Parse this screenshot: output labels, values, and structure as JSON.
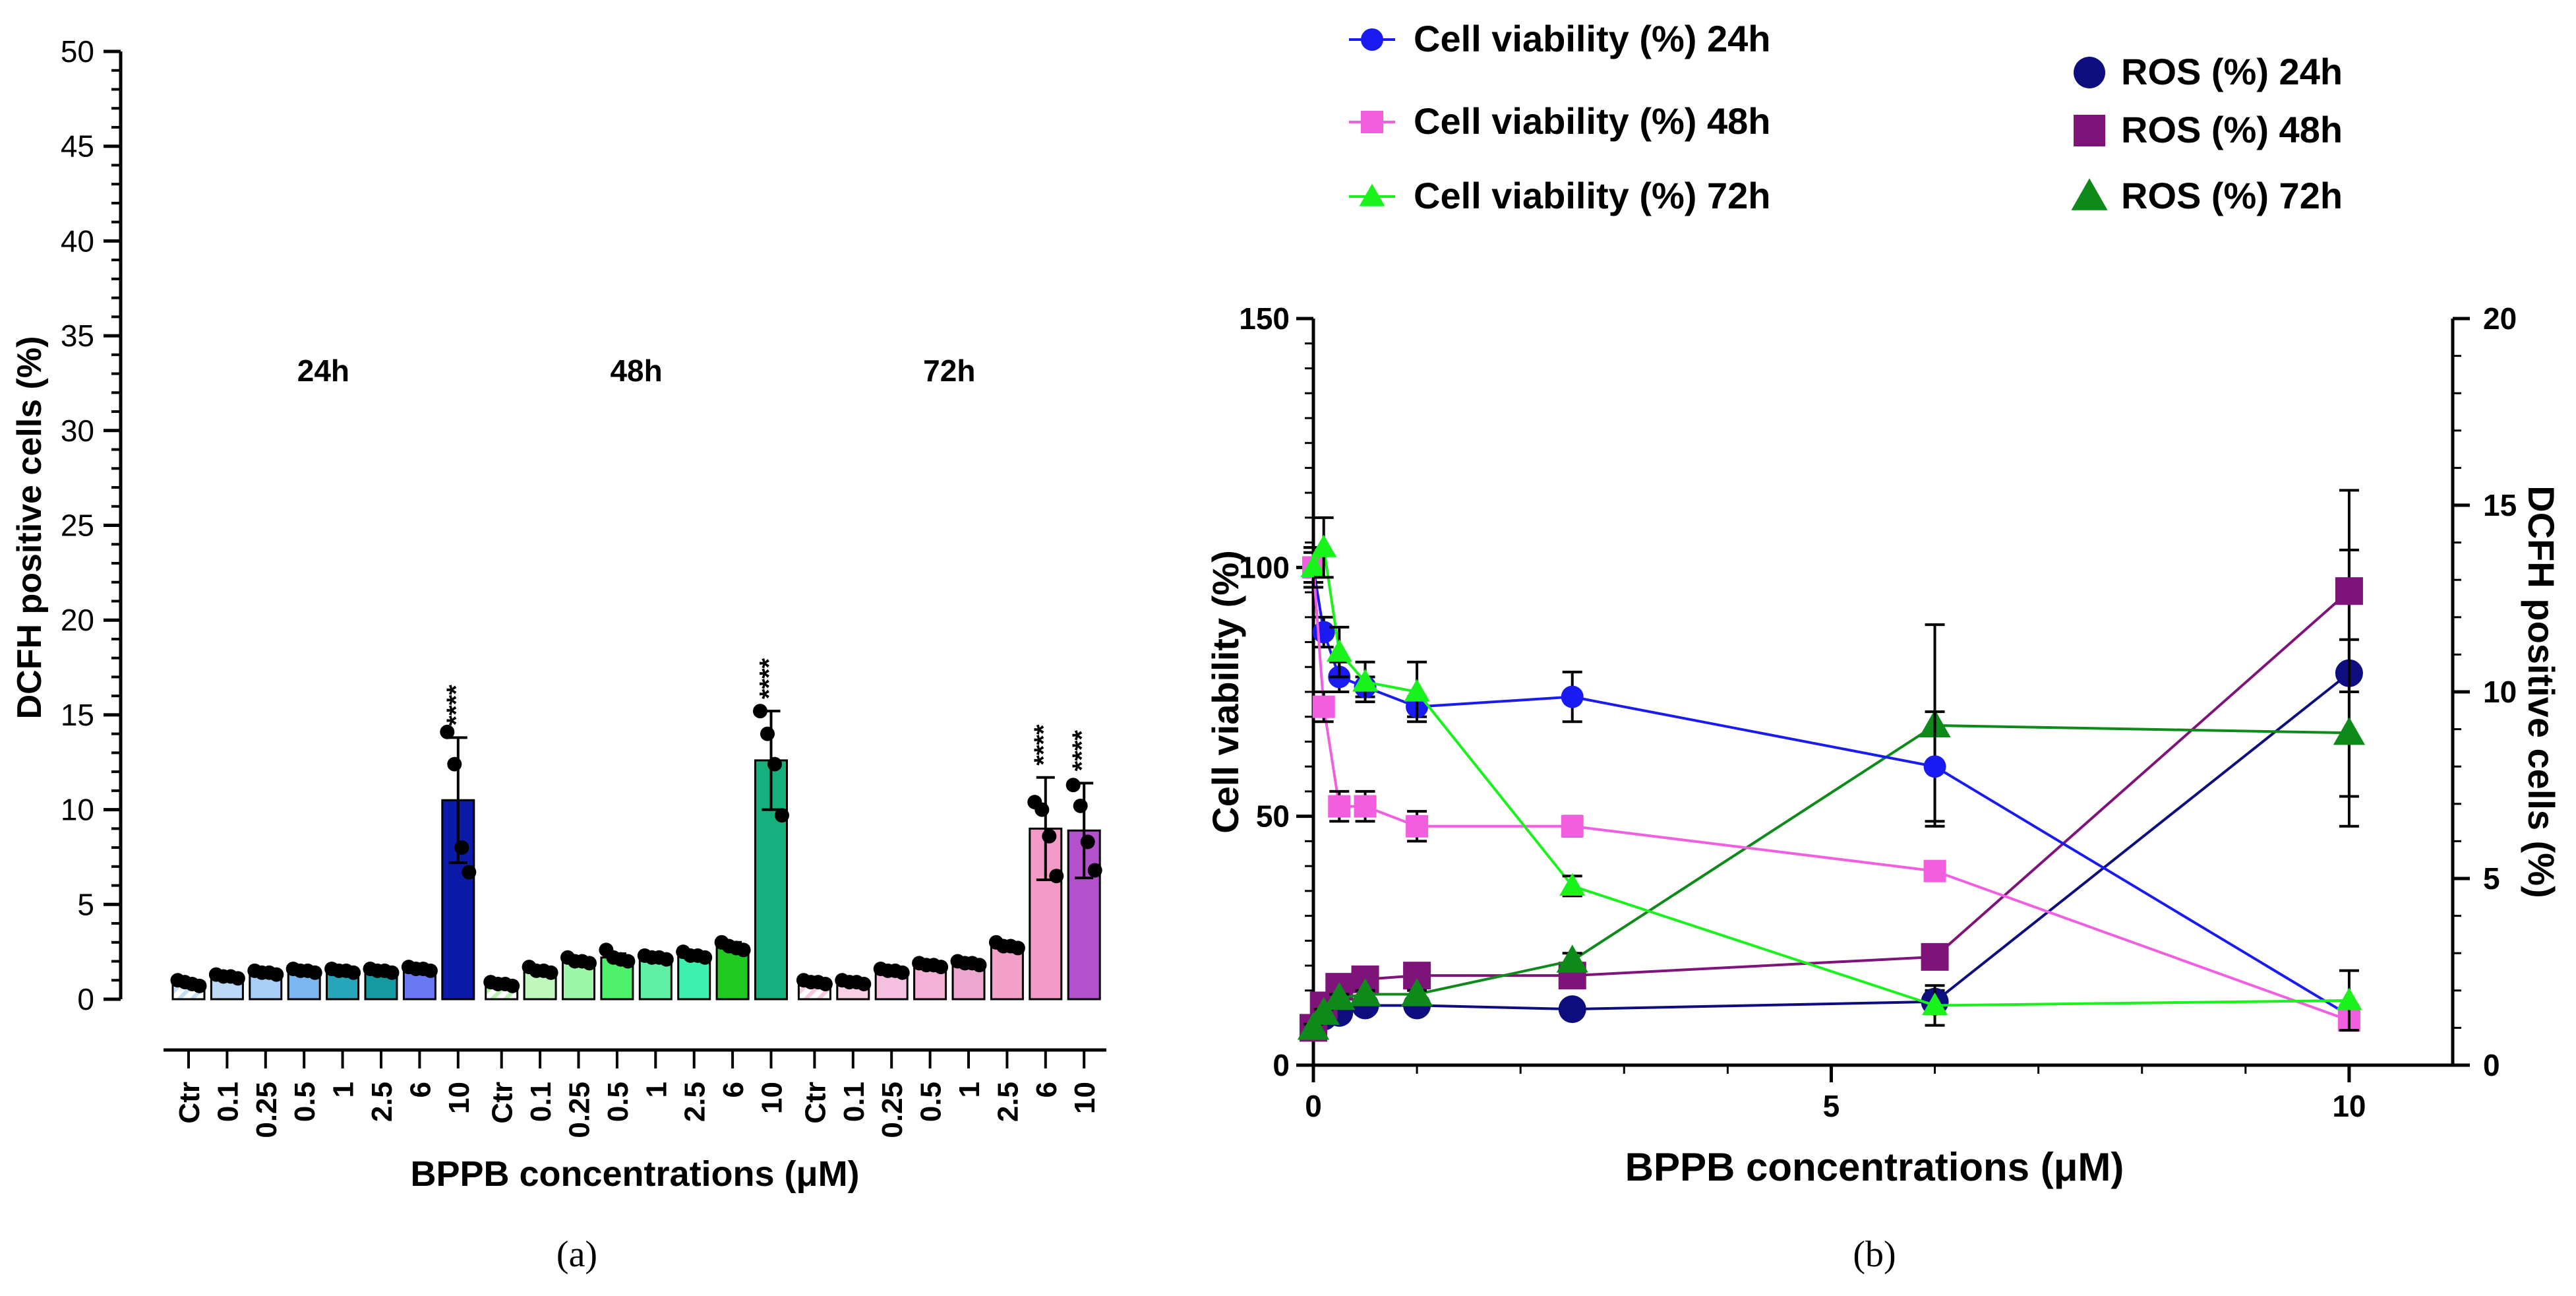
{
  "chart_data": [
    {
      "type": "bar",
      "panel_label": "(a)",
      "ylabel": "DCFH positive cells (%)",
      "xlabel": "BPPB concentrations (μM)",
      "ylim": [
        0,
        50
      ],
      "yticks": [
        0,
        5,
        10,
        15,
        20,
        25,
        30,
        35,
        40,
        45,
        50
      ],
      "groups": [
        {
          "label": "24h",
          "categories": [
            "Ctr",
            "0.1",
            "0.25",
            "0.5",
            "1",
            "2.5",
            "6",
            "10"
          ],
          "values": [
            0.9,
            1.2,
            1.4,
            1.5,
            1.5,
            1.5,
            1.6,
            10.5
          ],
          "errors": [
            0.1,
            0.1,
            0.1,
            0.1,
            0.1,
            0.1,
            0.1,
            3.3
          ],
          "colors": [
            "#c7ddf6",
            "#bcd9f7",
            "#a9cff8",
            "#7cb6f1",
            "#26a6b8",
            "#169aa2",
            "#6a78f2",
            "#0c1aa8"
          ],
          "significance": [
            "",
            "",
            "",
            "",
            "",
            "",
            "",
            "****"
          ],
          "points": [
            [
              1.0,
              0.9,
              0.8,
              0.7
            ],
            [
              1.3,
              1.2,
              1.2,
              1.1
            ],
            [
              1.5,
              1.4,
              1.4,
              1.3
            ],
            [
              1.6,
              1.5,
              1.5,
              1.4
            ],
            [
              1.6,
              1.5,
              1.5,
              1.4
            ],
            [
              1.6,
              1.5,
              1.5,
              1.4
            ],
            [
              1.7,
              1.6,
              1.6,
              1.5
            ],
            [
              14.1,
              12.4,
              8.0,
              6.7
            ]
          ]
        },
        {
          "label": "48h",
          "categories": [
            "Ctr",
            "0.1",
            "0.25",
            "0.5",
            "1",
            "2.5",
            "6",
            "10"
          ],
          "values": [
            0.8,
            1.5,
            2.0,
            2.2,
            2.2,
            2.3,
            2.8,
            12.6
          ],
          "errors": [
            0.1,
            0.1,
            0.1,
            0.2,
            0.1,
            0.1,
            0.2,
            2.6
          ],
          "colors": [
            "#b9f2b0",
            "#bff7bd",
            "#9df7a8",
            "#4ff06a",
            "#5ff0a6",
            "#3cf0b0",
            "#1fc91f",
            "#15b07d"
          ],
          "significance": [
            "",
            "",
            "",
            "",
            "",
            "",
            "",
            "****"
          ],
          "points": [
            [
              0.9,
              0.8,
              0.8,
              0.7
            ],
            [
              1.7,
              1.5,
              1.5,
              1.4
            ],
            [
              2.2,
              2.0,
              2.0,
              1.9
            ],
            [
              2.6,
              2.2,
              2.1,
              2.0
            ],
            [
              2.3,
              2.2,
              2.2,
              2.1
            ],
            [
              2.5,
              2.3,
              2.3,
              2.2
            ],
            [
              3.0,
              2.8,
              2.7,
              2.6
            ],
            [
              15.2,
              14.0,
              12.4,
              9.7
            ]
          ]
        },
        {
          "label": "72h",
          "categories": [
            "Ctr",
            "0.1",
            "0.25",
            "0.5",
            "1",
            "2.5",
            "6",
            "10"
          ],
          "values": [
            0.9,
            0.9,
            1.5,
            1.8,
            1.9,
            2.8,
            9.0,
            8.9
          ],
          "errors": [
            0.1,
            0.1,
            0.1,
            0.1,
            0.1,
            0.2,
            2.7,
            2.5
          ],
          "colors": [
            "#f6c9e0",
            "#f7d0e4",
            "#f6c0e0",
            "#f3b1d6",
            "#eca6d0",
            "#f3a0c8",
            "#f39ac6",
            "#b351cc"
          ],
          "significance": [
            "",
            "",
            "",
            "",
            "",
            "",
            "****",
            "****"
          ],
          "points": [
            [
              1.0,
              0.9,
              0.9,
              0.8
            ],
            [
              1.0,
              0.9,
              0.9,
              0.8
            ],
            [
              1.6,
              1.5,
              1.5,
              1.4
            ],
            [
              1.9,
              1.8,
              1.8,
              1.7
            ],
            [
              2.0,
              1.9,
              1.9,
              1.8
            ],
            [
              3.0,
              2.8,
              2.8,
              2.7
            ],
            [
              10.4,
              10.0,
              8.6,
              6.5
            ],
            [
              11.3,
              10.2,
              8.3,
              6.8
            ]
          ]
        }
      ]
    },
    {
      "type": "line",
      "panel_label": "(b)",
      "xlabel": "BPPB concentrations (μM)",
      "ylabel": "Cell viability (%)",
      "y2label": "DCFH positive cells (%)",
      "xlim": [
        0,
        11
      ],
      "xticks": [
        0,
        5,
        10
      ],
      "ylim": [
        0,
        150
      ],
      "yticks": [
        0,
        50,
        100,
        150
      ],
      "y2lim": [
        0,
        20
      ],
      "y2ticks": [
        0,
        5,
        10,
        15,
        20
      ],
      "series": [
        {
          "name": "Cell viability (%) 24h",
          "axis": "left",
          "marker": "circle",
          "color": "#1a1af2",
          "x": [
            0,
            0.1,
            0.25,
            0.5,
            1,
            2.5,
            6,
            10
          ],
          "y": [
            100,
            87,
            78,
            76,
            72,
            74,
            60,
            10
          ],
          "err": [
            3,
            3,
            3,
            2,
            2,
            5,
            11,
            2
          ]
        },
        {
          "name": "Cell viability (%) 48h",
          "axis": "left",
          "marker": "square",
          "color": "#f25ee0",
          "x": [
            0,
            0.1,
            0.25,
            0.5,
            1,
            2.5,
            6,
            10
          ],
          "y": [
            100,
            72,
            52,
            52,
            48,
            48,
            39,
            9
          ],
          "err": [
            4,
            3,
            3,
            3,
            3,
            2,
            1,
            1
          ]
        },
        {
          "name": "Cell viability (%) 72h",
          "axis": "left",
          "marker": "triangle",
          "color": "#19f21b",
          "x": [
            0,
            0.1,
            0.25,
            0.5,
            1,
            2.5,
            6,
            10
          ],
          "y": [
            100,
            104,
            83,
            77,
            75,
            36,
            12,
            13
          ],
          "err": [
            4,
            6,
            5,
            4,
            6,
            2,
            4,
            6
          ]
        },
        {
          "name": "ROS (%) 24h",
          "axis": "right",
          "marker": "circle",
          "color": "#0d0d80",
          "x": [
            0,
            0.1,
            0.25,
            0.5,
            1,
            2.5,
            6,
            10
          ],
          "y": [
            1.0,
            1.3,
            1.4,
            1.6,
            1.6,
            1.5,
            1.7,
            10.5
          ],
          "err": [
            0.1,
            0.1,
            0.1,
            0.1,
            0.1,
            0.1,
            0.3,
            3.3
          ]
        },
        {
          "name": "ROS (%) 48h",
          "axis": "right",
          "marker": "square",
          "color": "#7e1379",
          "x": [
            0,
            0.1,
            0.25,
            0.5,
            1,
            2.5,
            6,
            10
          ],
          "y": [
            1.0,
            1.6,
            2.1,
            2.3,
            2.4,
            2.4,
            2.9,
            12.7
          ],
          "err": [
            0.1,
            0.1,
            0.1,
            0.1,
            0.1,
            0.1,
            0.2,
            2.7
          ]
        },
        {
          "name": "ROS (%) 72h",
          "axis": "right",
          "marker": "triangle",
          "color": "#0e8a1a",
          "x": [
            0,
            0.1,
            0.25,
            0.5,
            1,
            2.5,
            6,
            10
          ],
          "y": [
            1.0,
            1.4,
            1.8,
            1.9,
            1.9,
            2.8,
            9.1,
            8.9
          ],
          "err": [
            0.1,
            0.1,
            0.1,
            0.1,
            0.1,
            0.2,
            2.7,
            2.5
          ]
        }
      ]
    }
  ]
}
